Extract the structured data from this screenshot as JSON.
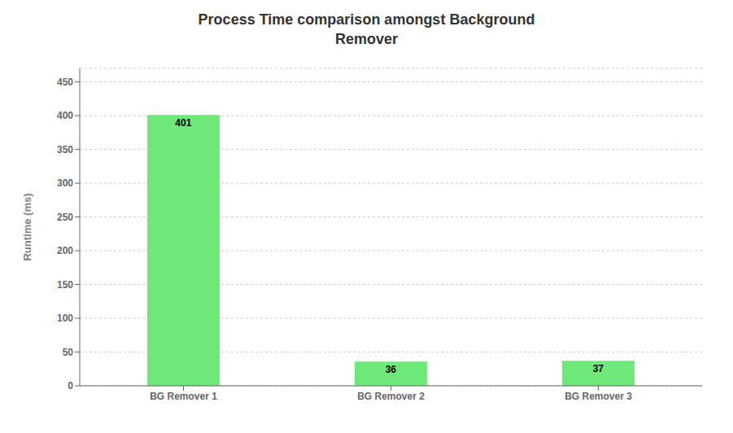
{
  "chart_data": {
    "type": "bar",
    "title": "Process Time comparison amongst Background\nRemover",
    "categories": [
      "BG Remover 1",
      "BG Remover 2",
      "BG Remover 3"
    ],
    "values": [
      401,
      36,
      37
    ],
    "color": "#6fe87a",
    "ylabel": "Runtime (ms)",
    "ylim": [
      0,
      470
    ],
    "yticks": [
      0,
      50,
      100,
      150,
      200,
      250,
      300,
      350,
      400,
      450
    ],
    "grid": true,
    "data_labels": true
  }
}
